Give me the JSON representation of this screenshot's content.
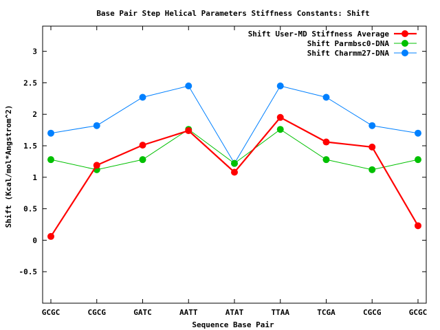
{
  "chart_data": {
    "type": "line",
    "title": "Base Pair Step Helical Parameters Stiffness Constants: Shift",
    "xlabel": "Sequence Base Pair",
    "ylabel": "Shift (Kcal/mol*Angstrom^2)",
    "categories": [
      "GCGC",
      "CGCG",
      "GATC",
      "AATT",
      "ATAT",
      "TTAA",
      "TCGA",
      "CGCG",
      "GCGC"
    ],
    "ylim": [
      -1.0,
      3.4
    ],
    "yticks": [
      -0.5,
      0,
      0.5,
      1,
      1.5,
      2,
      2.5,
      3
    ],
    "ytick_labels": [
      "-0.5",
      "0",
      "0.5",
      "1",
      "1.5",
      "2",
      "2.5",
      "3"
    ],
    "grid": false,
    "legend_position": "top-right",
    "series": [
      {
        "name": "Shift User-MD Stiffness Average",
        "color": "#ff0000",
        "values": [
          0.06,
          1.19,
          1.51,
          1.74,
          1.08,
          1.95,
          1.56,
          1.48,
          0.23
        ]
      },
      {
        "name": "Shift Parmbsc0-DNA",
        "color": "#00c000",
        "values": [
          1.28,
          1.12,
          1.28,
          1.76,
          1.22,
          1.76,
          1.28,
          1.12,
          1.28
        ]
      },
      {
        "name": "Shift Charmm27-DNA",
        "color": "#0080ff",
        "values": [
          1.7,
          1.82,
          2.27,
          2.45,
          1.22,
          2.45,
          2.27,
          1.82,
          1.7
        ]
      }
    ]
  }
}
